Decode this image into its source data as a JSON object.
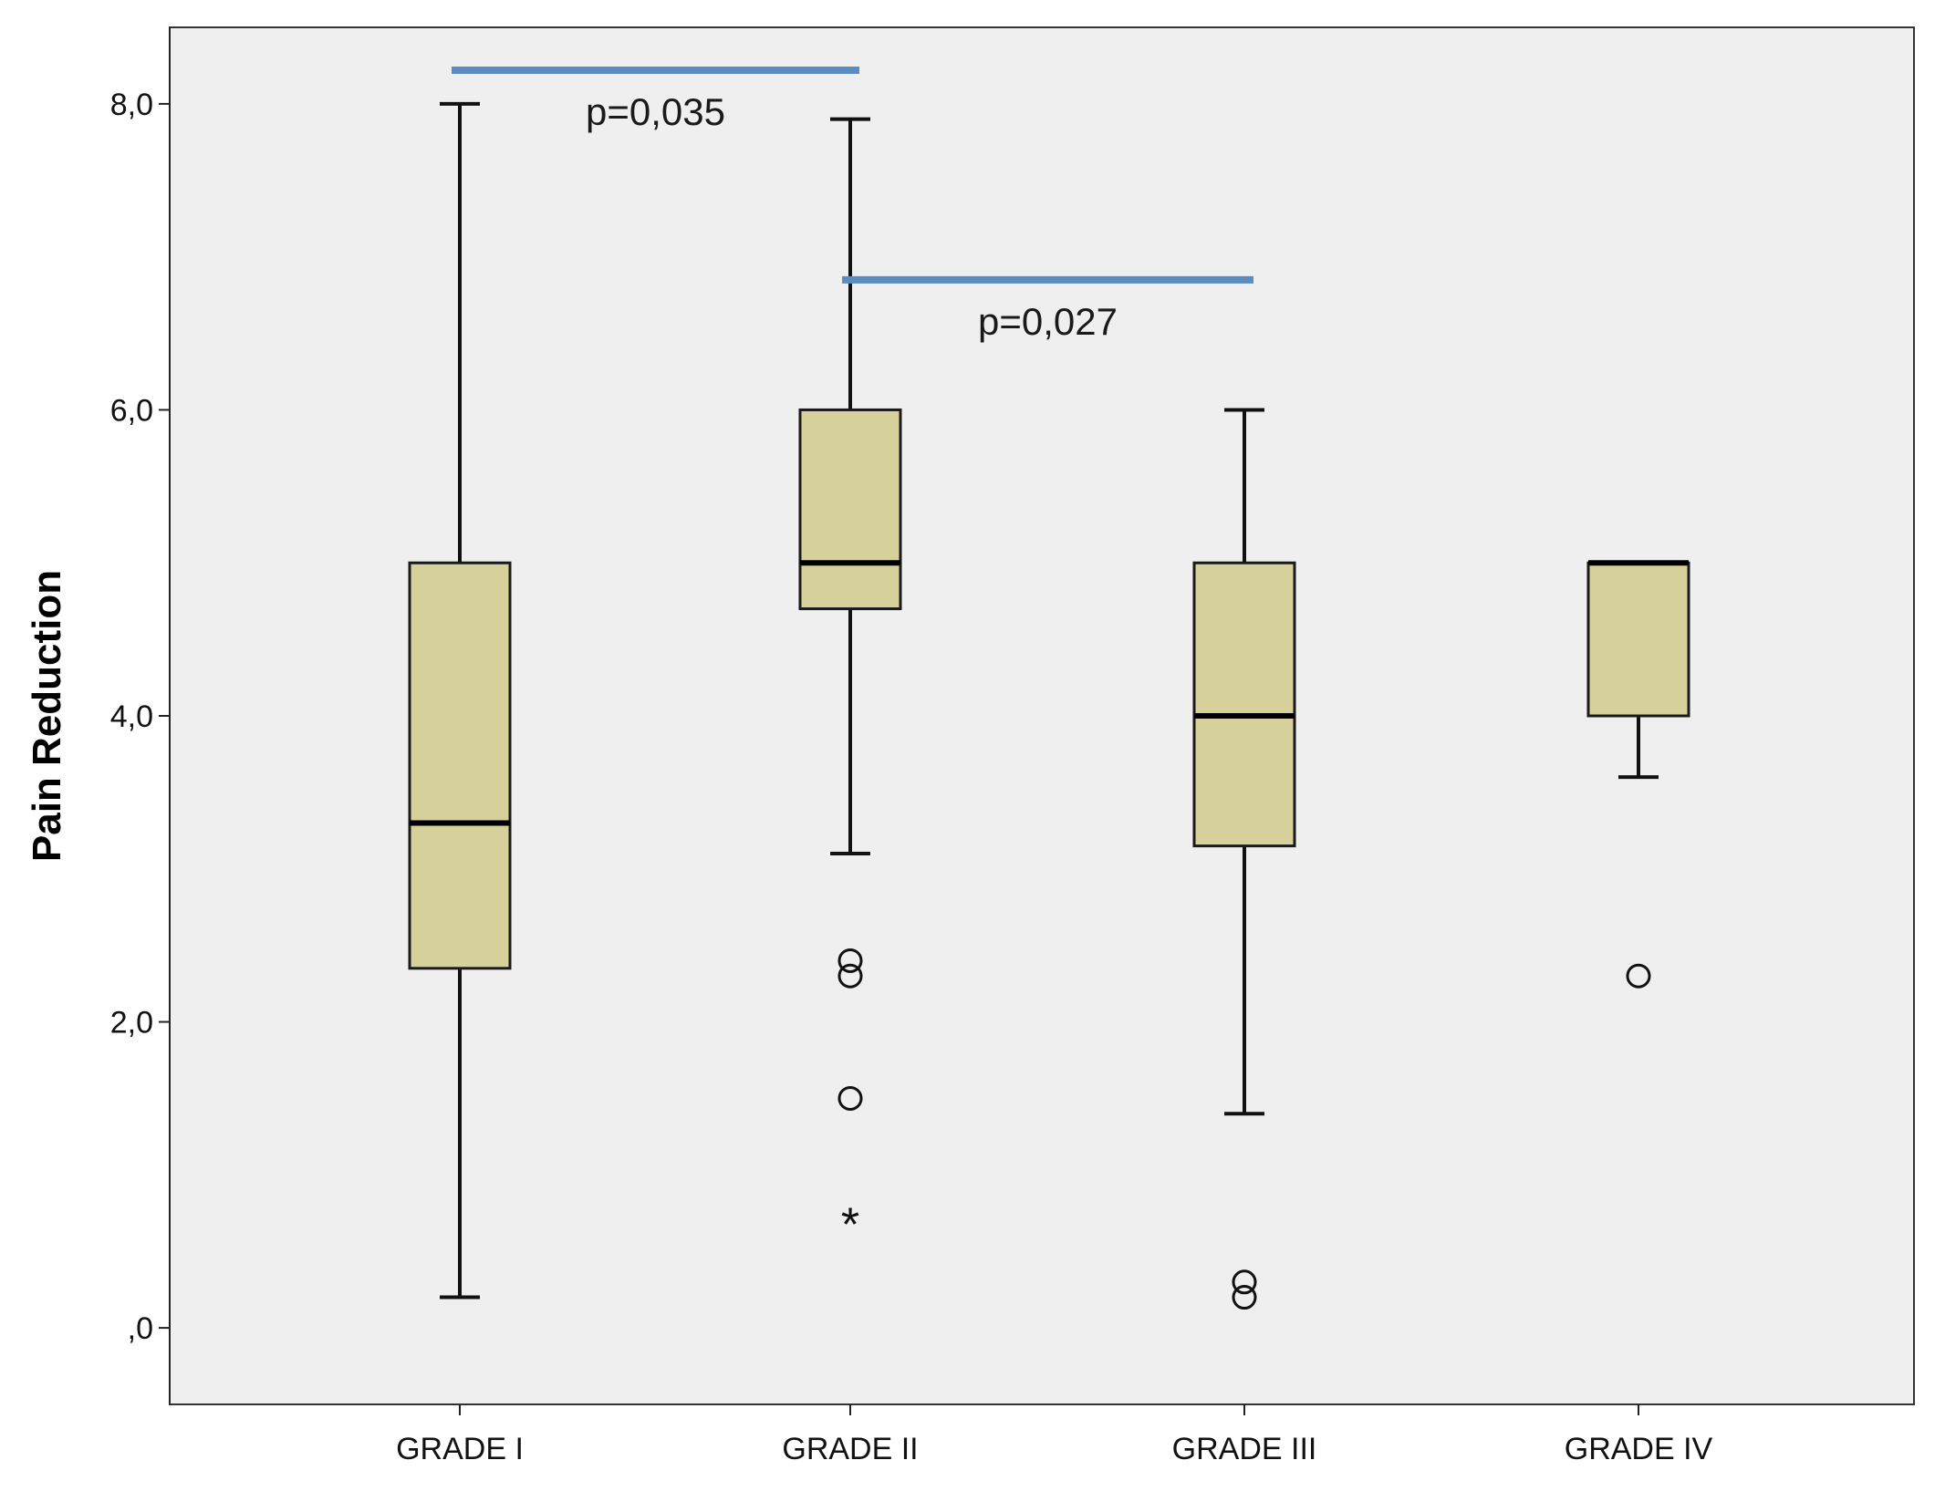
{
  "chart_data": {
    "type": "box",
    "ylabel": "Pain Reduction",
    "xlabel": "",
    "ylim": [
      -0.5,
      8.5
    ],
    "yticks": [
      {
        "value": 0,
        "label": ",0"
      },
      {
        "value": 2,
        "label": "2,0"
      },
      {
        "value": 4,
        "label": "4,0"
      },
      {
        "value": 6,
        "label": "6,0"
      },
      {
        "value": 8,
        "label": "8,0"
      }
    ],
    "grid": false,
    "categories": [
      "GRADE I",
      "GRADE II",
      "GRADE III",
      "GRADE IV"
    ],
    "boxes": [
      {
        "category": "GRADE I",
        "whisker_low": 0.2,
        "q1": 2.35,
        "median": 3.3,
        "q3": 5.0,
        "whisker_high": 8.0,
        "outliers": [],
        "extremes": []
      },
      {
        "category": "GRADE II",
        "whisker_low": 3.1,
        "q1": 4.7,
        "median": 5.0,
        "q3": 6.0,
        "whisker_high": 7.9,
        "outliers": [
          2.4,
          2.3,
          1.5
        ],
        "extremes": [
          0.7
        ]
      },
      {
        "category": "GRADE III",
        "whisker_low": 1.4,
        "q1": 3.15,
        "median": 4.0,
        "q3": 5.0,
        "whisker_high": 6.0,
        "outliers": [
          0.3,
          0.2
        ],
        "extremes": []
      },
      {
        "category": "GRADE IV",
        "whisker_low": 3.6,
        "q1": 4.0,
        "median": 5.0,
        "q3": 5.0,
        "whisker_high": 5.0,
        "outliers": [
          2.3
        ],
        "extremes": []
      }
    ],
    "annotations": [
      {
        "from": "GRADE I",
        "to": "GRADE II",
        "y": 8.22,
        "text": "p=0,035"
      },
      {
        "from": "GRADE II",
        "to": "GRADE III",
        "y": 6.85,
        "text": "p=0,027"
      }
    ]
  },
  "colors": {
    "page_background": "#ffffff",
    "plot_background": "#efefef",
    "box_fill": "#d6d09a",
    "box_stroke": "#1a1a1a",
    "median": "#000000",
    "whisker": "#111111",
    "annotation_line": "#5b8bbf",
    "text": "#111111"
  }
}
